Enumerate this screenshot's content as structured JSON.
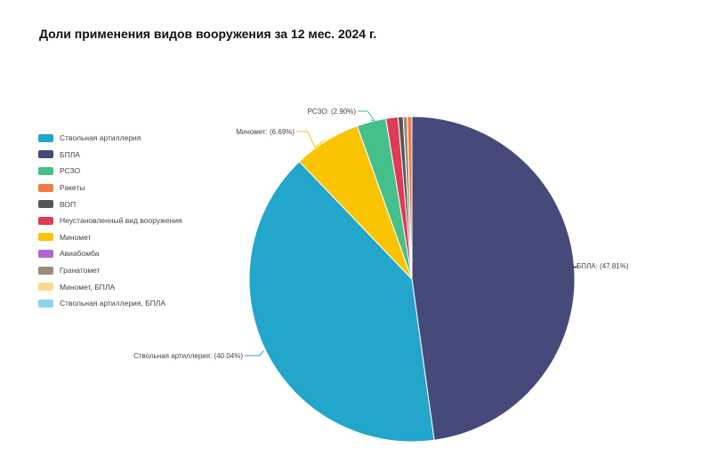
{
  "page": {
    "title": "Доли применения видов вооружения за 12 мес. 2024 г."
  },
  "chart_data": {
    "type": "pie",
    "title": "Доли применения видов вооружения за 12 мес. 2024 г.",
    "legend_position": "left",
    "slices": [
      {
        "name": "БПЛА",
        "value": 47.81,
        "color": "#454a7a",
        "label": "БПЛА: (47.81%)"
      },
      {
        "name": "Ствольная артиллерия",
        "value": 40.04,
        "color": "#22a6cc",
        "label": "Ствольная артиллерия: (40.04%)"
      },
      {
        "name": "Миномет",
        "value": 6.69,
        "color": "#fbc400",
        "label": "Миномет: (6.69%)"
      },
      {
        "name": "РСЗО",
        "value": 2.9,
        "color": "#45c08a",
        "label": "РСЗО: (2.90%)"
      },
      {
        "name": "Неустановленный вид вооружения",
        "value": 1.2,
        "color": "#de3b55",
        "label": ""
      },
      {
        "name": "ВОП",
        "value": 0.5,
        "color": "#555555",
        "label": ""
      },
      {
        "name": "Гранатомет",
        "value": 0.4,
        "color": "#9a8b7a",
        "label": ""
      },
      {
        "name": "Ракеты",
        "value": 0.46,
        "color": "#f27b45",
        "label": ""
      }
    ],
    "legend": [
      {
        "label": "Ствольная артиллерия",
        "color": "#22a6cc"
      },
      {
        "label": "БПЛА",
        "color": "#454a7a"
      },
      {
        "label": "РСЗО",
        "color": "#45c08a"
      },
      {
        "label": "Ракеты",
        "color": "#f27b45"
      },
      {
        "label": "ВОП",
        "color": "#555555"
      },
      {
        "label": "Неустановленный вид вооружения",
        "color": "#de3b55"
      },
      {
        "label": "Миномет",
        "color": "#fbc400"
      },
      {
        "label": "Авиабомба",
        "color": "#b366cc"
      },
      {
        "label": "Гранатомет",
        "color": "#9a8b7a"
      },
      {
        "label": "Миномет, БПЛА",
        "color": "#f7dc8c"
      },
      {
        "label": "Ствольная артиллерия, БПЛА",
        "color": "#8fd4ee"
      }
    ]
  }
}
